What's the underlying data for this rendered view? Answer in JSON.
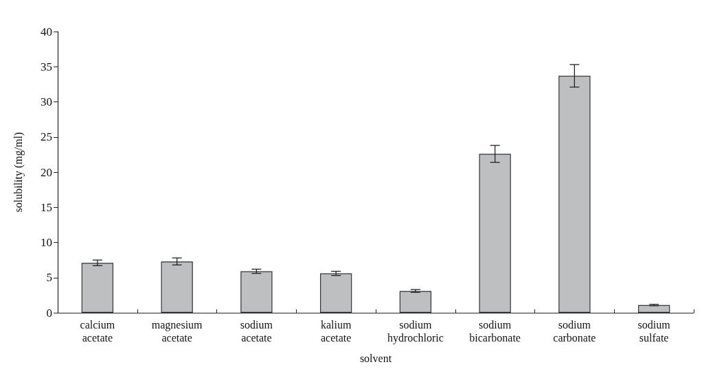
{
  "chart_data": {
    "type": "bar",
    "xlabel": "solvent",
    "ylabel": "solubility (mg/ml)",
    "categories": [
      "calcium acetate",
      "magnesium acetate",
      "sodium acetate",
      "kalium acetate",
      "sodium hydrochloric",
      "sodium bicarbonate",
      "sodium carbonate",
      "sodium sulfate"
    ],
    "values": [
      7.1,
      7.3,
      5.9,
      5.6,
      3.1,
      22.6,
      33.7,
      1.1
    ],
    "errors": [
      0.4,
      0.5,
      0.3,
      0.3,
      0.2,
      1.2,
      1.6,
      0.1
    ],
    "color": "#bebfc1",
    "ylim": [
      0,
      40
    ],
    "yticks": [
      0,
      5,
      10,
      15,
      20,
      25,
      30,
      35,
      40
    ],
    "grid": false
  }
}
